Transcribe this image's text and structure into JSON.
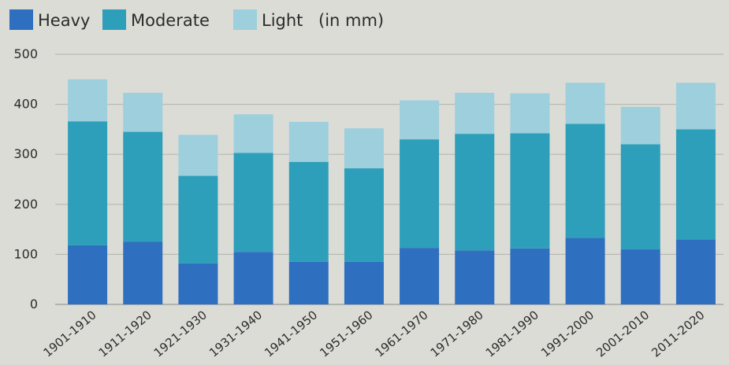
{
  "chart_data": {
    "type": "bar",
    "stacked": true,
    "legend_position": "top-left",
    "grid": true,
    "ylim": [
      0,
      500
    ],
    "yticks": [
      "0",
      "100",
      "200",
      "300",
      "400",
      "500"
    ],
    "categories": [
      "1901-1910",
      "1911-1920",
      "1921-1930",
      "1931-1940",
      "1941-1950",
      "1951-1960",
      "1961-1970",
      "1971-1980",
      "1981-1990",
      "1991-2000",
      "2001-2010",
      "2011-2020"
    ],
    "series": [
      {
        "name": "Heavy",
        "color": "#2e6fc0",
        "values": [
          118,
          125,
          82,
          105,
          85,
          85,
          113,
          108,
          112,
          133,
          110,
          130
        ]
      },
      {
        "name": "Moderate",
        "color": "#2e9fba",
        "values": [
          248,
          220,
          175,
          198,
          200,
          187,
          217,
          233,
          230,
          228,
          210,
          220
        ]
      },
      {
        "name": "Light",
        "color": "#9dcfdd",
        "values": [
          84,
          78,
          82,
          77,
          80,
          80,
          78,
          82,
          80,
          82,
          75,
          93
        ]
      }
    ],
    "legend_suffix": "(in mm)"
  }
}
